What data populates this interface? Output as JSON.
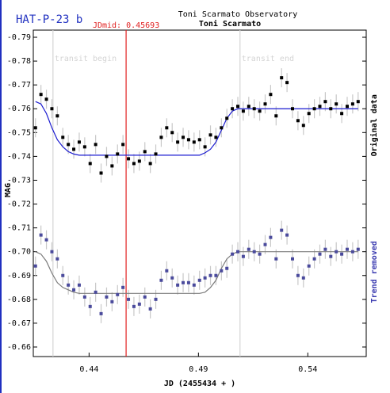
{
  "chart_data": {
    "type": "lightcurve",
    "title": "HAT-P-23 b",
    "subtitle": "Toni Scarmato Observatory",
    "author": "Toni Scarmato",
    "x_label": "JD (2455434 + )",
    "y_label": "MAG",
    "xlim": [
      0.4145,
      0.5667
    ],
    "ylim": [
      -0.656,
      -0.793
    ],
    "xticks": [
      0.44,
      0.49,
      0.54
    ],
    "yticks": [
      -0.79,
      -0.78,
      -0.77,
      -0.76,
      -0.75,
      -0.74,
      -0.73,
      -0.72,
      -0.71,
      {
        "value": -0.7,
        "label": "-0.70"
      },
      -0.69,
      -0.68,
      -0.67,
      -0.66
    ],
    "vlines": [
      {
        "x": 0.4235,
        "label": "transit begin",
        "color": "#d4d4d4"
      },
      {
        "x": 0.509,
        "label": "transit end",
        "color": "#d4d4d4"
      },
      {
        "x": 0.45693,
        "label": "JDmid: 0.45693",
        "color": "#e02020"
      }
    ],
    "x": [
      0.4155,
      0.418,
      0.4205,
      0.423,
      0.4255,
      0.428,
      0.4305,
      0.433,
      0.4355,
      0.438,
      0.4405,
      0.443,
      0.4455,
      0.448,
      0.4505,
      0.453,
      0.4555,
      0.458,
      0.4605,
      0.463,
      0.4655,
      0.468,
      0.4705,
      0.473,
      0.4755,
      0.478,
      0.4805,
      0.483,
      0.4855,
      0.488,
      0.4905,
      0.493,
      0.4955,
      0.498,
      0.5005,
      0.503,
      0.5055,
      0.508,
      0.5105,
      0.513,
      0.5155,
      0.518,
      0.5205,
      0.523,
      0.5255,
      0.528,
      0.5305,
      0.533,
      0.5355,
      0.538,
      0.5405,
      0.543,
      0.5455,
      0.548,
      0.5505,
      0.553,
      0.5555,
      0.558,
      0.5605,
      0.563
    ],
    "series": [
      {
        "name": "Original data",
        "color": "#000000",
        "label_color": "#000000",
        "values": [
          -0.752,
          -0.766,
          -0.764,
          -0.76,
          -0.757,
          -0.748,
          -0.745,
          -0.743,
          -0.746,
          -0.744,
          -0.737,
          -0.745,
          -0.733,
          -0.74,
          -0.736,
          -0.741,
          -0.745,
          -0.739,
          -0.737,
          -0.738,
          -0.742,
          -0.737,
          -0.741,
          -0.748,
          -0.752,
          -0.75,
          -0.746,
          -0.748,
          -0.747,
          -0.746,
          -0.747,
          -0.744,
          -0.749,
          -0.748,
          -0.752,
          -0.756,
          -0.76,
          -0.761,
          -0.759,
          -0.761,
          -0.76,
          -0.759,
          -0.762,
          -0.766,
          -0.757,
          -0.773,
          -0.771,
          -0.76,
          -0.755,
          -0.753,
          -0.758,
          -0.76,
          -0.761,
          -0.763,
          -0.76,
          -0.762,
          -0.758,
          -0.761,
          -0.762,
          -0.763
        ],
        "errors": [
          0.004,
          0.004,
          0.004,
          0.004,
          0.004,
          0.004,
          0.004,
          0.004,
          0.004,
          0.004,
          0.004,
          0.004,
          0.004,
          0.004,
          0.004,
          0.004,
          0.004,
          0.004,
          0.004,
          0.004,
          0.004,
          0.004,
          0.004,
          0.004,
          0.004,
          0.004,
          0.004,
          0.004,
          0.004,
          0.004,
          0.004,
          0.004,
          0.004,
          0.004,
          0.004,
          0.004,
          0.004,
          0.004,
          0.004,
          0.004,
          0.004,
          0.004,
          0.004,
          0.004,
          0.004,
          0.004,
          0.004,
          0.004,
          0.004,
          0.004,
          0.004,
          0.004,
          0.004,
          0.004,
          0.004,
          0.004,
          0.004,
          0.004,
          0.004,
          0.004
        ],
        "model": [
          -0.763,
          -0.762,
          -0.758,
          -0.752,
          -0.747,
          -0.744,
          -0.742,
          -0.741,
          -0.7405,
          -0.7405,
          -0.7405,
          -0.7405,
          -0.7405,
          -0.7405,
          -0.7405,
          -0.7405,
          -0.7405,
          -0.7405,
          -0.7405,
          -0.7405,
          -0.7405,
          -0.7405,
          -0.7405,
          -0.7405,
          -0.7405,
          -0.7405,
          -0.7405,
          -0.7405,
          -0.7405,
          -0.7405,
          -0.7405,
          -0.7415,
          -0.743,
          -0.746,
          -0.751,
          -0.756,
          -0.759,
          -0.76,
          -0.76,
          -0.76,
          -0.76,
          -0.76,
          -0.76,
          -0.76,
          -0.76,
          -0.76,
          -0.76,
          -0.76,
          -0.76,
          -0.76,
          -0.76,
          -0.76,
          -0.76,
          -0.76,
          -0.76,
          -0.76,
          -0.76,
          -0.76,
          -0.76,
          -0.76
        ],
        "model_color": "#1a1ad0"
      },
      {
        "name": "Trend removed",
        "color": "#4a4a9c",
        "label_color": "#3a3ab0",
        "values": [
          -0.694,
          -0.707,
          -0.705,
          -0.7,
          -0.697,
          -0.69,
          -0.686,
          -0.684,
          -0.686,
          -0.681,
          -0.677,
          -0.683,
          -0.674,
          -0.681,
          -0.679,
          -0.682,
          -0.685,
          -0.68,
          -0.677,
          -0.678,
          -0.681,
          -0.676,
          -0.68,
          -0.688,
          -0.692,
          -0.689,
          -0.686,
          -0.687,
          -0.687,
          -0.686,
          -0.688,
          -0.689,
          -0.69,
          -0.69,
          -0.692,
          -0.693,
          -0.699,
          -0.7,
          -0.698,
          -0.701,
          -0.7,
          -0.699,
          -0.703,
          -0.706,
          -0.697,
          -0.709,
          -0.707,
          -0.697,
          -0.69,
          -0.689,
          -0.694,
          -0.697,
          -0.699,
          -0.701,
          -0.698,
          -0.7,
          -0.699,
          -0.701,
          -0.7,
          -0.701
        ],
        "errors": [
          0.004,
          0.004,
          0.004,
          0.004,
          0.004,
          0.004,
          0.004,
          0.004,
          0.004,
          0.004,
          0.004,
          0.004,
          0.004,
          0.004,
          0.004,
          0.004,
          0.004,
          0.004,
          0.004,
          0.004,
          0.004,
          0.004,
          0.004,
          0.004,
          0.004,
          0.004,
          0.004,
          0.004,
          0.004,
          0.004,
          0.004,
          0.004,
          0.004,
          0.004,
          0.004,
          0.004,
          0.004,
          0.004,
          0.004,
          0.004,
          0.004,
          0.004,
          0.004,
          0.004,
          0.004,
          0.004,
          0.004,
          0.004,
          0.004,
          0.004,
          0.004,
          0.004,
          0.004,
          0.004,
          0.004,
          0.004,
          0.004,
          0.004,
          0.004,
          0.004
        ],
        "model": [
          -0.7,
          -0.699,
          -0.696,
          -0.691,
          -0.687,
          -0.685,
          -0.684,
          -0.683,
          -0.6825,
          -0.6825,
          -0.6825,
          -0.6825,
          -0.6825,
          -0.6825,
          -0.6825,
          -0.6825,
          -0.6825,
          -0.6825,
          -0.6825,
          -0.6825,
          -0.6825,
          -0.6825,
          -0.6825,
          -0.6825,
          -0.6825,
          -0.6825,
          -0.6825,
          -0.6825,
          -0.6825,
          -0.6825,
          -0.6825,
          -0.683,
          -0.685,
          -0.688,
          -0.693,
          -0.697,
          -0.699,
          -0.7,
          -0.7,
          -0.7,
          -0.7,
          -0.7,
          -0.7,
          -0.7,
          -0.7,
          -0.7,
          -0.7,
          -0.7,
          -0.7,
          -0.7,
          -0.7,
          -0.7,
          -0.7,
          -0.7,
          -0.7,
          -0.7,
          -0.7,
          -0.7,
          -0.7,
          -0.7
        ],
        "model_color": "#7a7a7a"
      }
    ]
  }
}
